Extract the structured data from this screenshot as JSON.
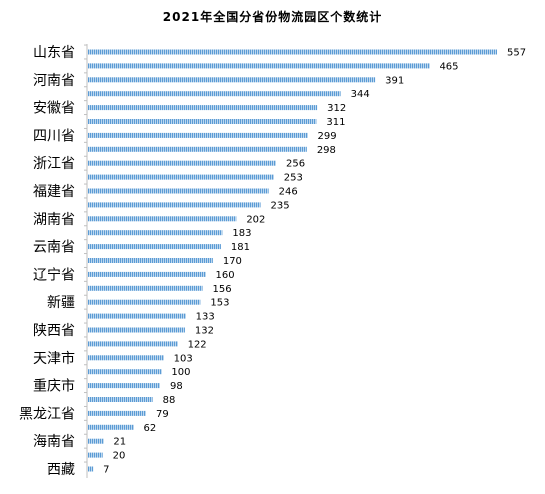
{
  "chart_data": {
    "type": "bar",
    "orientation": "horizontal",
    "title": "2021年全国分省份物流园区个数统计",
    "xlabel": "",
    "ylabel": "",
    "categories": [
      "山东省",
      "",
      "河南省",
      "",
      "安徽省",
      "",
      "四川省",
      "",
      "浙江省",
      "",
      "福建省",
      "",
      "湖南省",
      "",
      "云南省",
      "",
      "辽宁省",
      "",
      "新疆",
      "",
      "陕西省",
      "",
      "天津市",
      "",
      "重庆市",
      "",
      "黑龙江省",
      "",
      "海南省",
      "",
      "西藏"
    ],
    "values": [
      557,
      465,
      391,
      344,
      312,
      311,
      299,
      298,
      256,
      253,
      246,
      235,
      202,
      183,
      181,
      170,
      160,
      156,
      153,
      133,
      132,
      122,
      103,
      100,
      98,
      88,
      79,
      62,
      21,
      20,
      7
    ],
    "xlim": [
      0,
      557
    ],
    "grid": false,
    "legend": "none",
    "bar_color": "#5b9bd5"
  }
}
